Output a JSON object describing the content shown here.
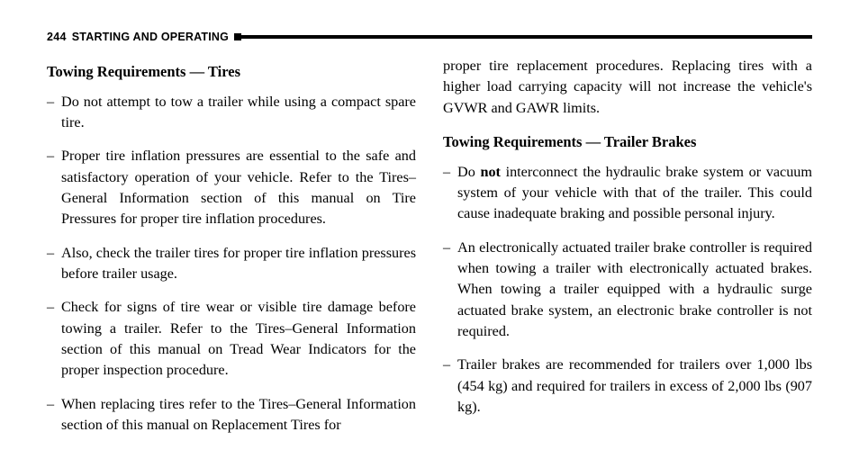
{
  "header": {
    "page_number": "244",
    "section": "STARTING AND OPERATING"
  },
  "left_column": {
    "heading1": "Towing Requirements — Tires",
    "bullets": [
      "Do not attempt to tow a trailer while using a compact spare tire.",
      "Proper tire inflation pressures are essential to the safe and satisfactory operation of your vehicle. Refer to the Tires–General Information section of this manual on Tire Pressures for proper tire inflation procedures.",
      "Also, check the trailer tires for proper tire inflation pressures before trailer usage.",
      "Check for signs of tire wear or visible tire damage before towing a trailer. Refer to the Tires–General Information section of this manual on Tread Wear Indicators for the proper inspection procedure.",
      "When replacing tires refer to the Tires–General Information section of this manual on Replacement Tires for"
    ]
  },
  "right_column": {
    "continuation": "proper tire replacement procedures. Replacing tires with a higher load carrying capacity will not increase the vehicle's GVWR and GAWR limits.",
    "heading2": "Towing Requirements — Trailer Brakes",
    "bullet1_pre": "Do ",
    "bullet1_bold": "not",
    "bullet1_post": " interconnect the hydraulic brake system or vacuum system of your vehicle with that of the trailer. This could cause inadequate braking and possible personal injury.",
    "bullet2": "An electronically actuated trailer brake controller is required when towing a trailer with electronically actuated brakes. When towing a trailer equipped with a hydraulic surge actuated brake system, an electronic brake controller is not required.",
    "bullet3": "Trailer brakes are recommended for trailers over 1,000 lbs (454 kg) and required for trailers in excess of 2,000 lbs (907 kg)."
  },
  "dash": "–"
}
